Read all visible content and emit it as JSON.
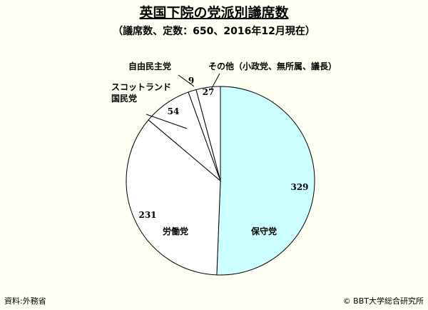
{
  "chart_data": {
    "type": "pie",
    "title": "英国下院の党派別議席数",
    "subtitle": "（議席数、定数：650、2016年12月現在）",
    "start": "12 o'clock",
    "direction": "clockwise",
    "slices": [
      {
        "name": "保守党",
        "value": 329,
        "color": "#ccffff"
      },
      {
        "name": "労働党",
        "value": 231,
        "color": "#ffffff"
      },
      {
        "name": "スコットランド\n国民党",
        "value": 54,
        "color": "#ffffff"
      },
      {
        "name": "自由民主党",
        "value": 9,
        "color": "#ffffff"
      },
      {
        "name": "その他（小政党、無所属、議長）",
        "value": 27,
        "color": "#ffffff"
      }
    ]
  },
  "footer": {
    "source": "資料:外務省",
    "copyright": "© BBT大学総合研究所"
  }
}
